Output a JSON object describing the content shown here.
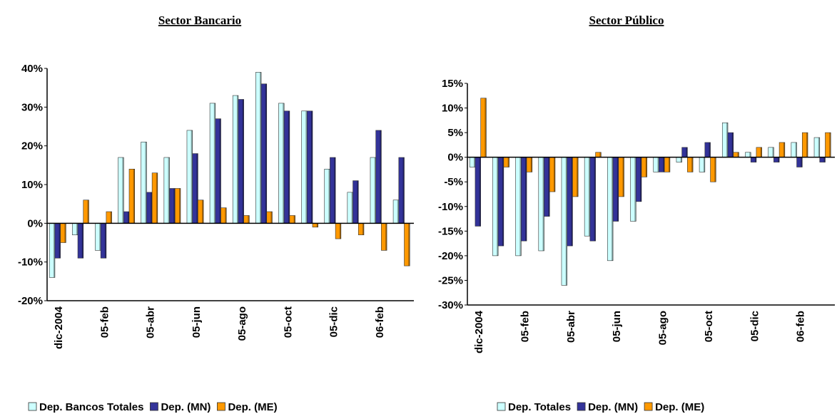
{
  "chart_data": [
    {
      "type": "bar",
      "title": "Sector Bancario",
      "categories": [
        "dic-2004",
        null,
        "05-feb",
        null,
        "05-abr",
        null,
        "05-jun",
        null,
        "05-ago",
        null,
        "05-oct",
        null,
        "05-dic",
        null,
        "06-feb",
        null
      ],
      "series": [
        {
          "name": "Dep. Bancos Totales",
          "color": "#ccffff",
          "values": [
            -14,
            -3,
            -7,
            17,
            21,
            17,
            24,
            31,
            33,
            39,
            31,
            29,
            14,
            8,
            17,
            6
          ]
        },
        {
          "name": "Dep. (MN)",
          "color": "#333399",
          "values": [
            -9,
            -9,
            -9,
            3,
            8,
            9,
            18,
            27,
            32,
            36,
            29,
            29,
            17,
            11,
            24,
            17
          ]
        },
        {
          "name": "Dep. (ME)",
          "color": "#ff9900",
          "values": [
            -5,
            6,
            3,
            14,
            13,
            9,
            6,
            4,
            2,
            3,
            2,
            -1,
            -4,
            -3,
            -7,
            -11
          ]
        }
      ],
      "ylim": [
        -20,
        40
      ],
      "yticks": [
        {
          "value": -20,
          "label": "-20%"
        },
        {
          "value": -10,
          "label": "-10%"
        },
        {
          "value": 0,
          "label": "0%"
        },
        {
          "value": 10,
          "label": "10%"
        },
        {
          "value": 20,
          "label": "20%"
        },
        {
          "value": 30,
          "label": "30%"
        },
        {
          "value": 40,
          "label": "40%"
        }
      ]
    },
    {
      "type": "bar",
      "title": "Sector Público",
      "categories": [
        "dic-2004",
        null,
        "05-feb",
        null,
        "05-abr",
        null,
        "05-jun",
        null,
        "05-ago",
        null,
        "05-oct",
        null,
        "05-dic",
        null,
        "06-feb",
        null
      ],
      "series": [
        {
          "name": "Dep. Totales",
          "color": "#ccffff",
          "values": [
            -2,
            -20,
            -20,
            -19,
            -26,
            -16,
            -21,
            -13,
            -3,
            -1,
            -3,
            7,
            1,
            2,
            3,
            4
          ]
        },
        {
          "name": "Dep. (MN)",
          "color": "#333399",
          "values": [
            -14,
            -18,
            -17,
            -12,
            -18,
            -17,
            -13,
            -9,
            -3,
            2,
            3,
            5,
            -1,
            -1,
            -2,
            -1
          ]
        },
        {
          "name": "Dep. (ME)",
          "color": "#ff9900",
          "values": [
            12,
            -2,
            -3,
            -7,
            -8,
            1,
            -8,
            -4,
            -3,
            -3,
            -5,
            1,
            2,
            3,
            5,
            5
          ]
        }
      ],
      "ylim": [
        -30,
        15
      ],
      "yticks": [
        {
          "value": -30,
          "label": "-30%"
        },
        {
          "value": -25,
          "label": "-25%"
        },
        {
          "value": -20,
          "label": "-20%"
        },
        {
          "value": -15,
          "label": "-15%"
        },
        {
          "value": -10,
          "label": "-10%"
        },
        {
          "value": -5,
          "label": "-5%"
        },
        {
          "value": 0,
          "label": "0%"
        },
        {
          "value": 5,
          "label": "5%"
        },
        {
          "value": 10,
          "label": "10%"
        },
        {
          "value": 15,
          "label": "15%"
        }
      ]
    }
  ]
}
